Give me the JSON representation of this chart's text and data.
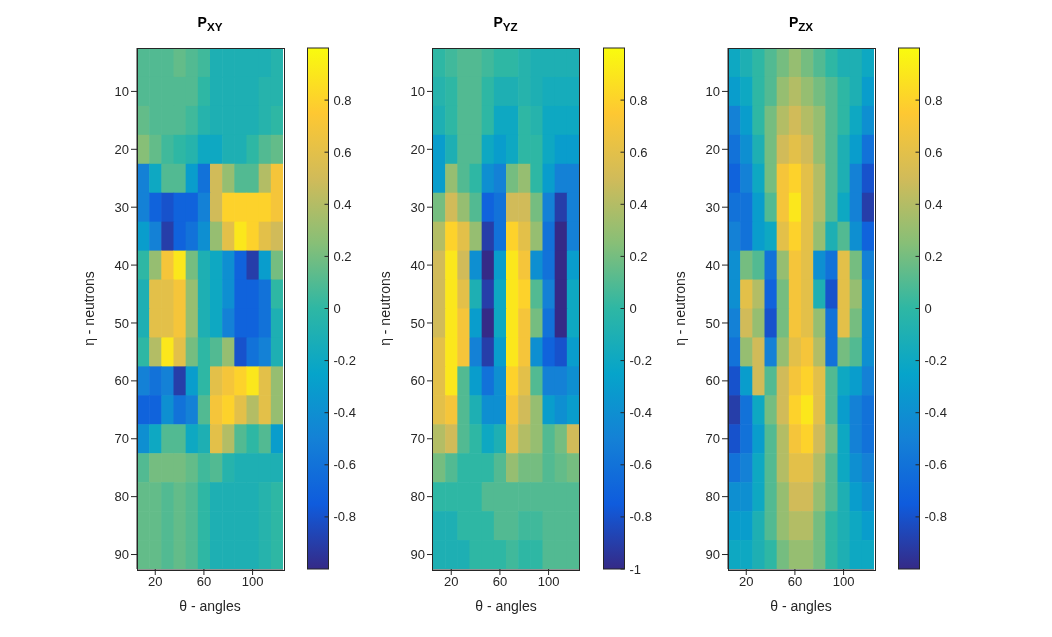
{
  "chart_data": [
    {
      "type": "heatmap",
      "title": "P$_{XY}$",
      "xlabel": "θ - angles",
      "ylabel": "η - neutrons",
      "clim": [
        -1,
        1
      ],
      "cticks": [
        -0.8,
        -0.6,
        -0.4,
        -0.2,
        0,
        0.2,
        0.4,
        0.6,
        0.8
      ],
      "categories": [
        null,
        "20",
        null,
        null,
        null,
        "60",
        null,
        null,
        null,
        "100",
        null,
        null
      ],
      "y_categories": [
        null,
        "10",
        null,
        "20",
        null,
        "30",
        null,
        "40",
        null,
        "50",
        null,
        "60",
        null,
        "70",
        null,
        "80",
        null,
        "90"
      ],
      "cells": [
        [
          0.1,
          0.1,
          0.1,
          0.15,
          0.1,
          0.05,
          -0.1,
          -0.1,
          -0.1,
          -0.1,
          -0.1,
          -0.05
        ],
        [
          0.1,
          0.1,
          0.1,
          0.1,
          0.1,
          0,
          -0.1,
          -0.1,
          -0.1,
          -0.1,
          -0.05,
          -0.05
        ],
        [
          0.15,
          0.1,
          0.1,
          0.1,
          0.05,
          -0.05,
          -0.1,
          -0.1,
          -0.1,
          -0.1,
          -0.05,
          0
        ],
        [
          0.25,
          0.15,
          0.05,
          0,
          -0.05,
          -0.2,
          -0.2,
          -0.1,
          -0.1,
          0,
          0.1,
          0.15
        ],
        [
          -0.5,
          -0.2,
          0.1,
          0.1,
          -0.3,
          -0.6,
          0.5,
          0.3,
          0.1,
          0.1,
          0.4,
          0.7
        ],
        [
          -0.5,
          -0.7,
          -0.8,
          -0.7,
          -0.7,
          -0.5,
          0.5,
          0.8,
          0.8,
          0.8,
          0.8,
          0.7
        ],
        [
          -0.3,
          -0.5,
          -0.9,
          -0.7,
          -0.6,
          -0.4,
          0.3,
          0.6,
          0.9,
          0.8,
          0.6,
          0.5
        ],
        [
          0,
          0.3,
          0.7,
          0.9,
          0.2,
          -0.1,
          -0.2,
          -0.4,
          -0.7,
          -0.9,
          -0.3,
          0.2
        ],
        [
          -0.1,
          0.6,
          0.6,
          0.7,
          0.3,
          -0.1,
          -0.2,
          -0.4,
          -0.7,
          -0.7,
          -0.6,
          0
        ],
        [
          -0.1,
          0.6,
          0.6,
          0.7,
          0.3,
          -0.1,
          -0.2,
          -0.5,
          -0.7,
          -0.7,
          -0.6,
          -0.1
        ],
        [
          0,
          0.4,
          0.9,
          0.6,
          0.2,
          0,
          0.1,
          0.3,
          -0.8,
          -0.6,
          -0.5,
          -0.1
        ],
        [
          -0.5,
          -0.6,
          -0.5,
          -0.9,
          -0.3,
          0,
          0.6,
          0.7,
          0.8,
          0.9,
          0.6,
          0.3
        ],
        [
          -0.7,
          -0.7,
          -0.4,
          -0.6,
          -0.5,
          0.1,
          0.7,
          0.8,
          0.6,
          0.4,
          0.6,
          0.3
        ],
        [
          -0.4,
          -0.2,
          0.1,
          0.1,
          -0.2,
          -0.1,
          0.6,
          0.4,
          0.1,
          0,
          0.1,
          -0.3
        ],
        [
          0.1,
          0.2,
          0.2,
          0.2,
          0.15,
          0.05,
          0.1,
          -0.05,
          -0.1,
          -0.1,
          -0.1,
          -0.1
        ],
        [
          0.15,
          0.15,
          0.1,
          0.15,
          0.1,
          0,
          -0.1,
          -0.1,
          -0.1,
          -0.1,
          -0.05,
          0
        ],
        [
          0.15,
          0.15,
          0.1,
          0.15,
          0.1,
          0,
          -0.1,
          -0.1,
          -0.1,
          -0.1,
          -0.05,
          0
        ],
        [
          0.15,
          0.15,
          0.1,
          0.15,
          0.1,
          0,
          -0.1,
          -0.1,
          -0.1,
          -0.1,
          -0.05,
          0
        ]
      ]
    },
    {
      "type": "heatmap",
      "title": "P$_{YZ}$",
      "xlabel": "θ - angles",
      "ylabel": "η - neutrons",
      "clim": [
        -1,
        1
      ],
      "cticks": [
        -1,
        -0.8,
        -0.6,
        -0.4,
        -0.2,
        0,
        0.2,
        0.4,
        0.6,
        0.8
      ],
      "categories": [
        null,
        "20",
        null,
        null,
        null,
        "60",
        null,
        null,
        null,
        "100",
        null,
        null
      ],
      "y_categories": [
        null,
        "10",
        null,
        "20",
        null,
        "30",
        null,
        "40",
        null,
        "50",
        null,
        "60",
        null,
        "70",
        null,
        "80",
        null,
        "90"
      ],
      "cells": [
        [
          0,
          0.05,
          0.1,
          0.1,
          0.05,
          0,
          0,
          -0.05,
          -0.1,
          -0.1,
          -0.1,
          -0.1
        ],
        [
          -0.05,
          0,
          0.1,
          0.1,
          0,
          -0.1,
          -0.1,
          -0.05,
          -0.1,
          -0.15,
          -0.15,
          -0.15
        ],
        [
          -0.1,
          0,
          0.1,
          0.1,
          0,
          -0.2,
          -0.2,
          0,
          -0.05,
          -0.2,
          -0.2,
          -0.2
        ],
        [
          -0.3,
          -0.1,
          0.1,
          0.1,
          -0.2,
          -0.3,
          -0.2,
          0,
          0,
          -0.2,
          -0.3,
          -0.3
        ],
        [
          -0.3,
          0.3,
          0.1,
          0,
          -0.4,
          -0.5,
          0.2,
          0.3,
          0,
          -0.3,
          -0.5,
          -0.5
        ],
        [
          0.2,
          0.5,
          0.3,
          0.1,
          -0.7,
          -0.6,
          0.5,
          0.5,
          0.2,
          -0.5,
          -0.9,
          -0.5
        ],
        [
          0.4,
          0.8,
          0.6,
          0.3,
          -0.9,
          -0.6,
          0.8,
          0.6,
          0.3,
          -0.6,
          -1,
          -0.5
        ],
        [
          0.5,
          0.9,
          0.5,
          -0.4,
          -1,
          -0.3,
          0.9,
          0.7,
          -0.4,
          -0.6,
          -1,
          -0.3
        ],
        [
          0.5,
          0.9,
          0.6,
          -0.1,
          -0.9,
          -0.2,
          0.9,
          0.8,
          0.1,
          -0.5,
          -1,
          -0.2
        ],
        [
          0.5,
          0.9,
          0.7,
          -0.3,
          -1,
          -0.2,
          0.9,
          0.7,
          0.2,
          -0.6,
          -1,
          -0.2
        ],
        [
          0.6,
          0.9,
          0.7,
          -0.5,
          -0.9,
          -0.3,
          0.9,
          0.7,
          -0.4,
          -0.7,
          -0.8,
          -0.3
        ],
        [
          0.6,
          0.9,
          0.1,
          -0.3,
          -0.6,
          -0.4,
          0.8,
          0.6,
          0.1,
          -0.5,
          -0.5,
          -0.4
        ],
        [
          0.6,
          0.7,
          0.1,
          -0.1,
          -0.4,
          -0.4,
          0.7,
          0.5,
          0.3,
          -0.3,
          -0.4,
          -0.3
        ],
        [
          0.4,
          0.5,
          0.1,
          0,
          -0.2,
          -0.1,
          0.6,
          0.4,
          0.3,
          0.1,
          0.2,
          0.5
        ],
        [
          0.2,
          0.1,
          0,
          0,
          0,
          0.1,
          0.3,
          0.2,
          0.2,
          0.1,
          0.15,
          0.2
        ],
        [
          0,
          0,
          0,
          0,
          0.1,
          0.1,
          0.1,
          0.1,
          0.1,
          0.1,
          0.1,
          0.1
        ],
        [
          -0.1,
          -0.1,
          0,
          0,
          0,
          0.1,
          0.1,
          0.05,
          0.05,
          0.1,
          0.1,
          0.1
        ],
        [
          -0.1,
          -0.1,
          -0.1,
          0,
          0,
          0,
          0.05,
          0,
          0,
          0.1,
          0.1,
          0.1
        ]
      ]
    },
    {
      "type": "heatmap",
      "title": "P$_{ZX}$",
      "xlabel": "θ - angles",
      "ylabel": "η - neutrons",
      "clim": [
        -1,
        1
      ],
      "cticks": [
        -0.8,
        -0.6,
        -0.4,
        -0.2,
        0,
        0.2,
        0.4,
        0.6,
        0.8
      ],
      "categories": [
        null,
        "20",
        null,
        null,
        null,
        "60",
        null,
        null,
        null,
        "100",
        null,
        null
      ],
      "y_categories": [
        null,
        "10",
        null,
        "20",
        null,
        "30",
        null,
        "40",
        null,
        "50",
        null,
        "60",
        null,
        "70",
        null,
        "80",
        null,
        "90"
      ],
      "cells": [
        [
          -0.2,
          -0.1,
          0,
          0.1,
          0.2,
          0.3,
          0.2,
          0.1,
          0,
          -0.1,
          -0.1,
          -0.2
        ],
        [
          -0.3,
          -0.2,
          0,
          0.1,
          0.3,
          0.4,
          0.3,
          0.2,
          0.1,
          0,
          -0.1,
          -0.3
        ],
        [
          -0.5,
          -0.3,
          0,
          0.2,
          0.4,
          0.5,
          0.4,
          0.3,
          0.1,
          0,
          -0.2,
          -0.4
        ],
        [
          -0.6,
          -0.4,
          -0.1,
          0.2,
          0.5,
          0.6,
          0.5,
          0.3,
          0.1,
          -0.1,
          -0.3,
          -0.6
        ],
        [
          -0.7,
          -0.5,
          -0.2,
          0.2,
          0.7,
          0.8,
          0.6,
          0.4,
          0.1,
          -0.1,
          -0.5,
          -0.8
        ],
        [
          -0.6,
          -0.6,
          -0.3,
          0.1,
          0.7,
          0.9,
          0.6,
          0.4,
          0.1,
          -0.2,
          -0.5,
          -0.9
        ],
        [
          -0.5,
          -0.6,
          -0.3,
          -0.2,
          0.6,
          0.8,
          0.6,
          0.3,
          -0.1,
          0.1,
          -0.4,
          -0.7
        ],
        [
          -0.4,
          0.2,
          0.1,
          -0.6,
          0.3,
          0.7,
          0.6,
          -0.4,
          -0.6,
          0.6,
          0.2,
          -0.5
        ],
        [
          -0.4,
          0.6,
          0.4,
          -0.7,
          0.2,
          0.7,
          0.6,
          -0.1,
          -0.8,
          0.6,
          0.3,
          -0.4
        ],
        [
          -0.5,
          0.5,
          0.3,
          -0.8,
          0.2,
          0.7,
          0.6,
          0.3,
          -0.6,
          0.6,
          0.2,
          -0.4
        ],
        [
          -0.6,
          0.3,
          0.5,
          -0.5,
          0.3,
          0.6,
          0.7,
          0.4,
          -0.6,
          0.2,
          0.1,
          -0.4
        ],
        [
          -0.8,
          -0.3,
          0.5,
          0.1,
          0.5,
          0.7,
          0.8,
          0.6,
          0.1,
          -0.2,
          -0.3,
          -0.5
        ],
        [
          -0.9,
          -0.6,
          -0.2,
          0.2,
          0.5,
          0.8,
          0.9,
          0.6,
          0.1,
          -0.3,
          -0.5,
          -0.6
        ],
        [
          -0.8,
          -0.6,
          -0.3,
          0.1,
          0.4,
          0.7,
          0.8,
          0.5,
          0.2,
          -0.2,
          -0.5,
          -0.6
        ],
        [
          -0.6,
          -0.5,
          -0.2,
          0.1,
          0.4,
          0.6,
          0.6,
          0.4,
          0.1,
          -0.2,
          -0.4,
          -0.5
        ],
        [
          -0.4,
          -0.4,
          -0.2,
          0.1,
          0.3,
          0.5,
          0.5,
          0.3,
          0.1,
          -0.1,
          -0.3,
          -0.4
        ],
        [
          -0.3,
          -0.3,
          -0.1,
          0.1,
          0.3,
          0.4,
          0.4,
          0.2,
          0,
          -0.1,
          -0.2,
          -0.3
        ],
        [
          -0.2,
          -0.2,
          -0.1,
          0,
          0.2,
          0.3,
          0.3,
          0.2,
          0,
          -0.1,
          -0.2,
          -0.2
        ]
      ]
    }
  ]
}
